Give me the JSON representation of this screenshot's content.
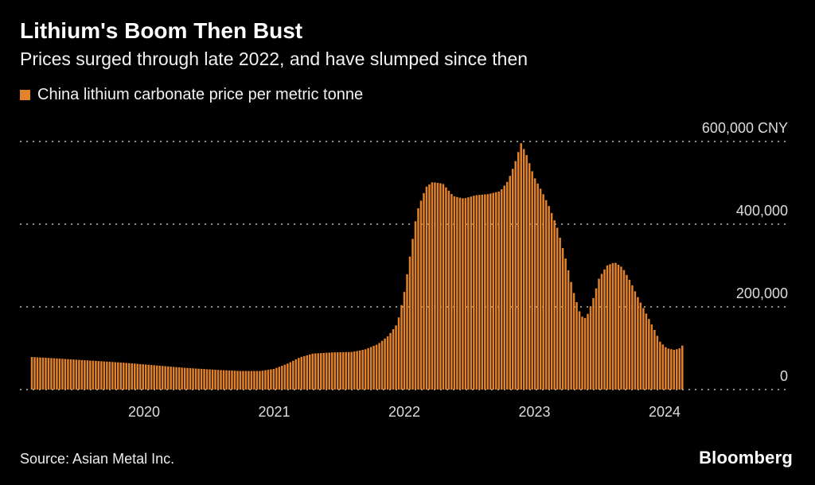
{
  "header": {
    "title": "Lithium's Boom Then Bust",
    "subtitle": "Prices surged through late 2022, and have slumped since then"
  },
  "legend": {
    "label": "China lithium carbonate price per metric tonne",
    "swatch_color": "#E2832C"
  },
  "footer": {
    "source": "Source: Asian Metal Inc.",
    "brand": "Bloomberg"
  },
  "chart_data": {
    "type": "bar",
    "title": "Lithium's Boom Then Bust",
    "subtitle": "Prices surged through late 2022, and have slumped since then",
    "series_name": "China lithium carbonate price per metric tonne",
    "unit": "CNY per metric tonne",
    "bar_color": "#E2832C",
    "background_color": "#000000",
    "grid": "dotted horizontal",
    "legend_position": "top-left",
    "ylim": [
      0,
      620000
    ],
    "yticks": [
      {
        "value": 600000,
        "label": "600,000 CNY"
      },
      {
        "value": 400000,
        "label": "400,000"
      },
      {
        "value": 200000,
        "label": "200,000"
      },
      {
        "value": 0,
        "label": "0"
      }
    ],
    "xticks": [
      {
        "value": 2020,
        "label": "2020"
      },
      {
        "value": 2021,
        "label": "2021"
      },
      {
        "value": 2022,
        "label": "2022"
      },
      {
        "value": 2023,
        "label": "2023"
      },
      {
        "value": 2024,
        "label": "2024"
      }
    ],
    "x_range": [
      2019.13,
      2024.95
    ],
    "data_range": [
      2019.13,
      2024.15
    ],
    "points": [
      [
        2019.13,
        79000
      ],
      [
        2019.25,
        77000
      ],
      [
        2019.4,
        74000
      ],
      [
        2019.55,
        71000
      ],
      [
        2019.7,
        68000
      ],
      [
        2019.85,
        65000
      ],
      [
        2020.0,
        61000
      ],
      [
        2020.15,
        57000
      ],
      [
        2020.3,
        53000
      ],
      [
        2020.45,
        50000
      ],
      [
        2020.6,
        47000
      ],
      [
        2020.75,
        45000
      ],
      [
        2020.9,
        45000
      ],
      [
        2021.0,
        50000
      ],
      [
        2021.1,
        62000
      ],
      [
        2021.2,
        78000
      ],
      [
        2021.3,
        87000
      ],
      [
        2021.45,
        90000
      ],
      [
        2021.6,
        91000
      ],
      [
        2021.7,
        97000
      ],
      [
        2021.8,
        110000
      ],
      [
        2021.88,
        130000
      ],
      [
        2021.95,
        160000
      ],
      [
        2022.0,
        230000
      ],
      [
        2022.05,
        330000
      ],
      [
        2022.1,
        430000
      ],
      [
        2022.17,
        490000
      ],
      [
        2022.22,
        502000
      ],
      [
        2022.3,
        498000
      ],
      [
        2022.38,
        468000
      ],
      [
        2022.46,
        462000
      ],
      [
        2022.55,
        470000
      ],
      [
        2022.65,
        473000
      ],
      [
        2022.74,
        480000
      ],
      [
        2022.8,
        505000
      ],
      [
        2022.85,
        545000
      ],
      [
        2022.9,
        596000
      ],
      [
        2022.94,
        570000
      ],
      [
        2023.0,
        515000
      ],
      [
        2023.06,
        480000
      ],
      [
        2023.12,
        440000
      ],
      [
        2023.18,
        390000
      ],
      [
        2023.24,
        320000
      ],
      [
        2023.3,
        240000
      ],
      [
        2023.36,
        178000
      ],
      [
        2023.4,
        172000
      ],
      [
        2023.45,
        215000
      ],
      [
        2023.5,
        270000
      ],
      [
        2023.56,
        300000
      ],
      [
        2023.62,
        308000
      ],
      [
        2023.68,
        295000
      ],
      [
        2023.74,
        262000
      ],
      [
        2023.8,
        222000
      ],
      [
        2023.86,
        185000
      ],
      [
        2023.92,
        148000
      ],
      [
        2023.97,
        115000
      ],
      [
        2024.02,
        100000
      ],
      [
        2024.08,
        96000
      ],
      [
        2024.12,
        100000
      ],
      [
        2024.15,
        110000
      ]
    ]
  }
}
